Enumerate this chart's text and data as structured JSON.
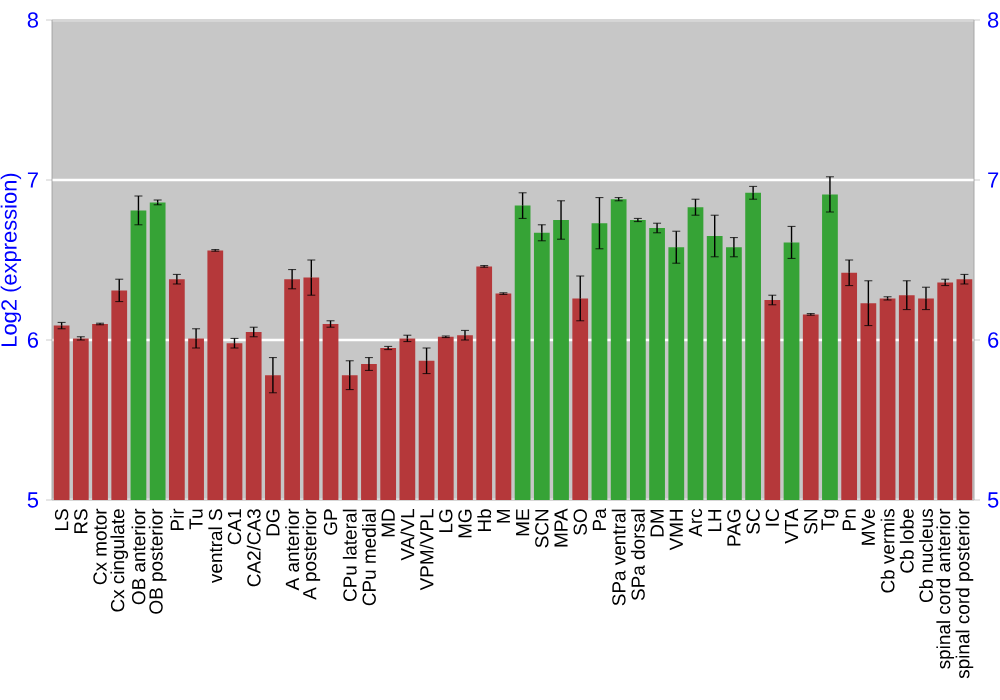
{
  "chart_data": {
    "type": "bar",
    "ylabel": "Log2 (expression)",
    "categories": [
      "LS",
      "RS",
      "Cx motor",
      "Cx cingulate",
      "OB anterior",
      "OB posterior",
      "Pir",
      "Tu",
      "ventral S",
      "CA1",
      "CA2/CA3",
      "DG",
      "A anterior",
      "A posterior",
      "GP",
      "CPu lateral",
      "CPu medial",
      "MD",
      "VA/VL",
      "VPM/VPL",
      "LG",
      "MG",
      "Hb",
      "M",
      "ME",
      "SCN",
      "MPA",
      "SO",
      "Pa",
      "SPa ventral",
      "SPa dorsal",
      "DM",
      "VMH",
      "Arc",
      "LH",
      "PAG",
      "SC",
      "IC",
      "VTA",
      "SN",
      "Tg",
      "Pn",
      "MVe",
      "Cb vermis",
      "Cb lobe",
      "Cb nucleus",
      "spinal cord anterior",
      "spinal cord posterior"
    ],
    "values": [
      6.09,
      6.01,
      6.1,
      6.31,
      6.81,
      6.86,
      6.38,
      6.01,
      6.56,
      5.98,
      6.05,
      5.78,
      6.38,
      6.39,
      6.1,
      5.78,
      5.85,
      5.95,
      6.01,
      5.87,
      6.02,
      6.03,
      6.46,
      6.29,
      6.84,
      6.67,
      6.75,
      6.26,
      6.73,
      6.88,
      6.75,
      6.7,
      6.58,
      6.83,
      6.65,
      6.58,
      6.92,
      6.25,
      6.61,
      6.16,
      6.91,
      6.42,
      6.23,
      6.26,
      6.28,
      6.26,
      6.36,
      6.38
    ],
    "errors": [
      0.02,
      0.01,
      0.005,
      0.07,
      0.09,
      0.015,
      0.03,
      0.06,
      0.005,
      0.03,
      0.03,
      0.11,
      0.06,
      0.11,
      0.02,
      0.09,
      0.04,
      0.01,
      0.02,
      0.08,
      0.005,
      0.03,
      0.005,
      0.005,
      0.08,
      0.05,
      0.12,
      0.14,
      0.16,
      0.01,
      0.01,
      0.03,
      0.1,
      0.05,
      0.13,
      0.06,
      0.04,
      0.03,
      0.1,
      0.005,
      0.11,
      0.08,
      0.14,
      0.01,
      0.09,
      0.07,
      0.02,
      0.03
    ],
    "colors": [
      "#b5383a",
      "#b5383a",
      "#b5383a",
      "#b5383a",
      "#36a336",
      "#36a336",
      "#b5383a",
      "#b5383a",
      "#b5383a",
      "#b5383a",
      "#b5383a",
      "#b5383a",
      "#b5383a",
      "#b5383a",
      "#b5383a",
      "#b5383a",
      "#b5383a",
      "#b5383a",
      "#b5383a",
      "#b5383a",
      "#b5383a",
      "#b5383a",
      "#b5383a",
      "#b5383a",
      "#36a336",
      "#36a336",
      "#36a336",
      "#b5383a",
      "#36a336",
      "#36a336",
      "#36a336",
      "#36a336",
      "#36a336",
      "#36a336",
      "#36a336",
      "#36a336",
      "#36a336",
      "#b5383a",
      "#36a336",
      "#b5383a",
      "#36a336",
      "#b5383a",
      "#b5383a",
      "#b5383a",
      "#b5383a",
      "#b5383a",
      "#b5383a",
      "#b5383a"
    ],
    "ylim": [
      5,
      8
    ],
    "yticks": [
      5,
      6,
      7,
      8
    ],
    "y2lim": [
      5,
      8
    ],
    "y2ticks": [
      5,
      6,
      7,
      8
    ],
    "grid": "y"
  }
}
